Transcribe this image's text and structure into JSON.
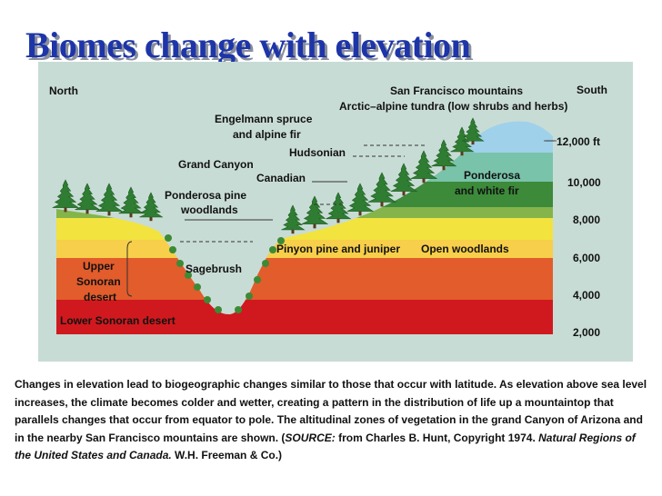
{
  "title": "Biomes change with elevation",
  "labels": {
    "north": "North",
    "south": "South",
    "sf_mountains": "San Francisco mountains",
    "arctic": "Arctic–alpine tundra (low shrubs and herbs)",
    "engelmann_1": "Engelmann spruce",
    "engelmann_2": "and alpine fir",
    "hudsonian": "Hudsonian",
    "grand_canyon": "Grand Canyon",
    "canadian": "Canadian",
    "ponderosa_1": "Ponderosa",
    "ponderosa_2": "and white fir",
    "pp_woodlands_1": "Ponderosa pine",
    "pp_woodlands_2": "woodlands",
    "pinyon": "Pinyon pine and juniper",
    "open_woodlands": "Open woodlands",
    "upper_1": "Upper",
    "upper_2": "Sonoran",
    "upper_3": "desert",
    "sagebrush": "Sagebrush",
    "lower_sonoran": "Lower Sonoran desert"
  },
  "elevations": [
    "12,000 ft",
    "10,000",
    "8,000",
    "6,000",
    "4,000",
    "2,000"
  ],
  "caption": {
    "main": "Changes in elevation lead to biogeographic changes similar to those that occur with latitude.  As elevation above sea level increases, the climate becomes colder and wetter, creating a pattern in the distribution of life up a mountaintop that parallels changes that occur from equator to pole.  The altitudinal zones of vegetation in the grand Canyon of Arizona and in the nearby San Francisco mountains are shown.  (",
    "source_label": "SOURCE:",
    "source_from": " from Charles B. Hunt, Copyright 1974.  ",
    "book": "Natural Regions of the United States and Canada.",
    "publisher": "  W.H. Freeman & Co.)"
  },
  "colors": {
    "title": "#1d35a8",
    "panel": "#c8dcd6",
    "lower_sonoran": "#d0191e",
    "upper_sonoran": "#e25c2c",
    "pinyon_zone": "#f7cf4a",
    "yellow_band": "#f2e33e",
    "green_light": "#84b44a",
    "green_dark": "#3c8a3a",
    "teal": "#79c3aa",
    "sky_blue": "#9fd1ea"
  }
}
